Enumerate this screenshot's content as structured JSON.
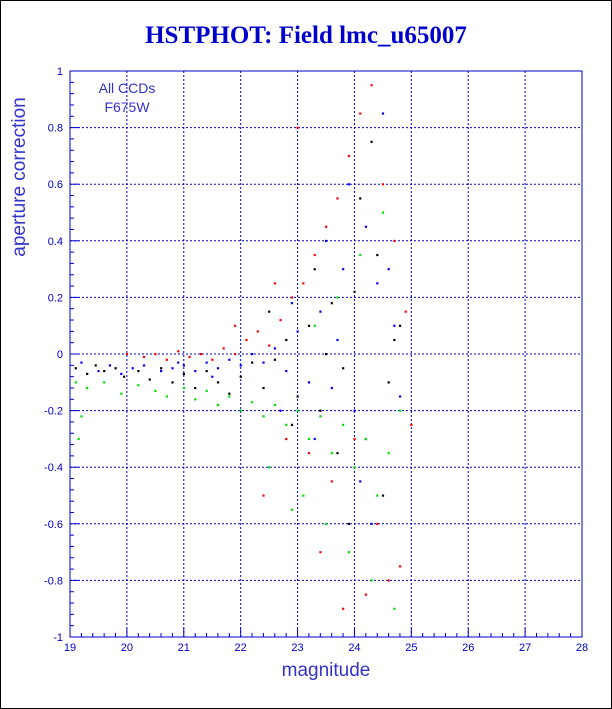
{
  "chart_data": {
    "type": "scatter",
    "title": "HSTPHOT: Field lmc_u65007",
    "xlabel": "magnitude",
    "ylabel": "aperture correction",
    "xlim": [
      19,
      28
    ],
    "ylim": [
      -1,
      1
    ],
    "x_ticks": [
      19,
      20,
      21,
      22,
      23,
      24,
      25,
      26,
      27,
      28
    ],
    "y_ticks": [
      -1,
      -0.8,
      -0.6,
      -0.4,
      -0.2,
      0,
      0.2,
      0.4,
      0.6,
      0.8,
      1
    ],
    "grid": true,
    "legend_position": "top-left",
    "annotations": [
      "All CCDs",
      "F675W"
    ],
    "series": [
      {
        "color": "#000000",
        "points": [
          [
            19.1,
            -0.05
          ],
          [
            19.3,
            -0.07
          ],
          [
            19.45,
            -0.04
          ],
          [
            19.6,
            -0.06
          ],
          [
            19.8,
            -0.05
          ],
          [
            19.95,
            -0.08
          ],
          [
            20.2,
            -0.06
          ],
          [
            20.4,
            -0.09
          ],
          [
            20.6,
            -0.05
          ],
          [
            20.8,
            -0.1
          ],
          [
            21.0,
            -0.07
          ],
          [
            21.2,
            -0.12
          ],
          [
            21.4,
            -0.06
          ],
          [
            21.6,
            -0.1
          ],
          [
            21.8,
            -0.14
          ],
          [
            22.0,
            -0.08
          ],
          [
            22.2,
            -0.03
          ],
          [
            22.4,
            -0.12
          ],
          [
            22.6,
            -0.02
          ],
          [
            22.8,
            0.05
          ],
          [
            23.0,
            -0.15
          ],
          [
            23.2,
            0.1
          ],
          [
            23.4,
            -0.2
          ],
          [
            23.6,
            0.18
          ],
          [
            23.8,
            -0.05
          ],
          [
            24.0,
            0.22
          ],
          [
            24.2,
            -0.3
          ],
          [
            24.4,
            0.35
          ],
          [
            24.6,
            -0.1
          ],
          [
            24.8,
            0.1
          ],
          [
            23.3,
            0.3
          ],
          [
            23.7,
            -0.35
          ],
          [
            24.1,
            0.55
          ],
          [
            24.5,
            -0.5
          ],
          [
            24.3,
            0.75
          ],
          [
            23.9,
            -0.6
          ],
          [
            22.9,
            -0.25
          ],
          [
            22.5,
            0.15
          ],
          [
            23.5,
            0.0
          ],
          [
            24.7,
            0.05
          ]
        ]
      },
      {
        "color": "#ff0000",
        "points": [
          [
            20.0,
            0.0
          ],
          [
            20.3,
            -0.01
          ],
          [
            20.5,
            0.0
          ],
          [
            20.7,
            -0.02
          ],
          [
            20.9,
            0.01
          ],
          [
            21.1,
            -0.01
          ],
          [
            21.3,
            0.0
          ],
          [
            21.5,
            -0.02
          ],
          [
            21.7,
            0.02
          ],
          [
            21.9,
            0.0
          ],
          [
            22.1,
            0.05
          ],
          [
            22.3,
            0.08
          ],
          [
            22.5,
            0.03
          ],
          [
            22.7,
            0.12
          ],
          [
            22.9,
            0.2
          ],
          [
            23.1,
            0.25
          ],
          [
            23.3,
            0.35
          ],
          [
            23.5,
            0.45
          ],
          [
            23.7,
            0.55
          ],
          [
            23.9,
            0.7
          ],
          [
            24.1,
            0.85
          ],
          [
            24.3,
            0.95
          ],
          [
            24.5,
            0.6
          ],
          [
            24.7,
            0.4
          ],
          [
            23.2,
            -0.35
          ],
          [
            23.6,
            -0.45
          ],
          [
            24.0,
            -0.3
          ],
          [
            24.4,
            -0.6
          ],
          [
            24.6,
            -0.8
          ],
          [
            24.8,
            -0.75
          ],
          [
            22.4,
            -0.5
          ],
          [
            22.8,
            -0.3
          ],
          [
            23.4,
            -0.7
          ],
          [
            23.8,
            -0.9
          ],
          [
            24.2,
            -0.85
          ],
          [
            22.6,
            0.25
          ],
          [
            23.0,
            0.8
          ],
          [
            24.9,
            0.15
          ],
          [
            25.0,
            -0.25
          ],
          [
            21.9,
            0.1
          ]
        ]
      },
      {
        "color": "#0000ff",
        "points": [
          [
            19.2,
            -0.03
          ],
          [
            19.5,
            -0.06
          ],
          [
            19.7,
            -0.04
          ],
          [
            19.9,
            -0.07
          ],
          [
            20.1,
            -0.05
          ],
          [
            20.3,
            -0.04
          ],
          [
            20.6,
            -0.06
          ],
          [
            20.8,
            -0.05
          ],
          [
            21.0,
            -0.04
          ],
          [
            21.2,
            -0.06
          ],
          [
            21.4,
            -0.03
          ],
          [
            21.6,
            -0.05
          ],
          [
            21.8,
            -0.02
          ],
          [
            22.0,
            -0.04
          ],
          [
            22.2,
            0.0
          ],
          [
            22.4,
            -0.03
          ],
          [
            22.6,
            0.02
          ],
          [
            22.8,
            -0.06
          ],
          [
            23.0,
            0.08
          ],
          [
            23.2,
            -0.1
          ],
          [
            23.4,
            0.15
          ],
          [
            23.6,
            -0.12
          ],
          [
            23.8,
            0.3
          ],
          [
            24.0,
            -0.2
          ],
          [
            24.2,
            0.45
          ],
          [
            24.4,
            0.25
          ],
          [
            24.6,
            0.3
          ],
          [
            24.8,
            -0.15
          ],
          [
            23.3,
            -0.3
          ],
          [
            23.7,
            0.05
          ],
          [
            24.1,
            -0.45
          ],
          [
            24.5,
            0.85
          ],
          [
            23.9,
            0.6
          ],
          [
            22.9,
            0.18
          ],
          [
            22.7,
            -0.2
          ],
          [
            24.3,
            -0.6
          ],
          [
            23.5,
            0.4
          ],
          [
            24.7,
            0.1
          ],
          [
            21.5,
            -0.08
          ],
          [
            20.9,
            -0.03
          ]
        ]
      },
      {
        "color": "#00e000",
        "points": [
          [
            19.1,
            -0.1
          ],
          [
            19.3,
            -0.12
          ],
          [
            19.6,
            -0.1
          ],
          [
            19.9,
            -0.14
          ],
          [
            20.2,
            -0.11
          ],
          [
            20.5,
            -0.13
          ],
          [
            20.7,
            -0.15
          ],
          [
            21.0,
            -0.12
          ],
          [
            21.2,
            -0.16
          ],
          [
            21.4,
            -0.13
          ],
          [
            21.6,
            -0.18
          ],
          [
            21.8,
            -0.15
          ],
          [
            22.0,
            -0.2
          ],
          [
            22.2,
            -0.17
          ],
          [
            22.4,
            -0.22
          ],
          [
            22.6,
            -0.18
          ],
          [
            22.8,
            -0.25
          ],
          [
            23.0,
            -0.2
          ],
          [
            23.2,
            -0.3
          ],
          [
            23.4,
            -0.22
          ],
          [
            23.6,
            -0.35
          ],
          [
            23.8,
            -0.25
          ],
          [
            24.0,
            -0.4
          ],
          [
            24.2,
            -0.3
          ],
          [
            24.4,
            -0.5
          ],
          [
            24.6,
            -0.35
          ],
          [
            24.8,
            -0.2
          ],
          [
            23.1,
            -0.5
          ],
          [
            23.5,
            -0.6
          ],
          [
            23.9,
            -0.7
          ],
          [
            24.3,
            -0.8
          ],
          [
            24.7,
            -0.9
          ],
          [
            22.5,
            -0.4
          ],
          [
            22.9,
            -0.55
          ],
          [
            23.3,
            0.1
          ],
          [
            23.7,
            0.2
          ],
          [
            24.1,
            0.35
          ],
          [
            24.5,
            0.5
          ],
          [
            19.15,
            -0.3
          ],
          [
            19.2,
            -0.22
          ]
        ]
      }
    ]
  }
}
